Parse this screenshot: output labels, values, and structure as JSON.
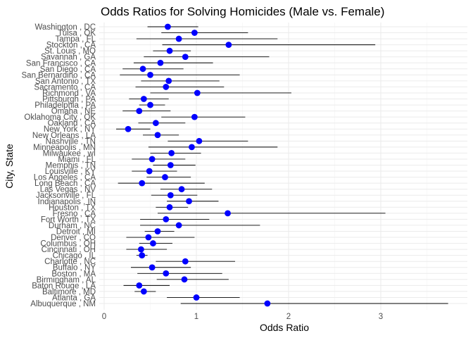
{
  "chart_data": {
    "type": "scatter",
    "title": "Odds Ratios for Solving Homicides (Male vs. Female)",
    "xlabel": "Odds Ratio",
    "ylabel": "City, State",
    "xlim": [
      0,
      3.85
    ],
    "xticks": [
      0,
      1,
      2,
      3
    ],
    "grid": true,
    "point_color": "#0000ff",
    "errorbar_color": "#000000",
    "categories": [
      "Washington , DC",
      "Tulsa , OK",
      "Tampa , FL",
      "Stockton , CA",
      "St. Louis , MO",
      "Savannah , GA",
      "San Francisco , CA",
      "San Diego , CA",
      "San Bernardino , CA",
      "San Antonio , TX",
      "Sacramento , CA",
      "Richmond , VA",
      "Pittsburgh , PA",
      "Philadelphia , PA",
      "Omaha , NE",
      "Oklahoma City , OK",
      "Oakland , CA",
      "New York , NY",
      "New Orleans , LA",
      "Nashville , TN",
      "Minneapolis , MN",
      "Milwaukee , wI",
      "Miami , FL",
      "Memphis , TN",
      "Louisville , KY",
      "Los Angeles , CA",
      "Long Beach , CA",
      "Las Vegas , NV",
      "Jacksonville , FL",
      "Indianapolis , IN",
      "Houston , TX",
      "Fresno , CA",
      "Fort Worth , TX",
      "Durham , NC",
      "Detroit , MI",
      "Denver , CO",
      "Columbus , OH",
      "Cincinnati , OH",
      "Chicago , IL",
      "Charlotte , NC",
      "Buffalo , NY",
      "Boston , MA",
      "Birmingham , AL",
      "Baton Rouge , LA",
      "Baltimore , MD",
      "Atlanta , GA",
      "Albuquerque , NM"
    ],
    "odds_ratio": [
      0.69,
      0.98,
      0.81,
      1.35,
      0.71,
      0.88,
      0.61,
      0.42,
      0.5,
      0.7,
      0.67,
      1.01,
      0.43,
      0.5,
      0.38,
      0.98,
      0.56,
      0.26,
      0.58,
      1.03,
      0.95,
      0.73,
      0.52,
      0.72,
      0.49,
      0.66,
      0.41,
      0.84,
      0.72,
      0.92,
      0.71,
      1.34,
      0.67,
      0.81,
      0.58,
      0.48,
      0.53,
      0.4,
      0.41,
      0.88,
      0.52,
      0.67,
      0.87,
      0.38,
      0.43,
      1.0,
      1.77
    ],
    "ci_low": [
      0.47,
      0.62,
      0.35,
      0.63,
      0.53,
      0.43,
      0.32,
      0.2,
      0.17,
      0.4,
      0.34,
      0.5,
      0.27,
      0.38,
      0.2,
      0.62,
      0.37,
      0.13,
      0.42,
      0.69,
      0.48,
      0.5,
      0.3,
      0.53,
      0.3,
      0.46,
      0.15,
      0.61,
      0.51,
      0.68,
      0.56,
      0.58,
      0.39,
      0.39,
      0.44,
      0.24,
      0.38,
      0.24,
      0.35,
      0.56,
      0.29,
      0.36,
      0.57,
      0.21,
      0.33,
      0.68,
      0.83
    ],
    "ci_high": [
      1.02,
      1.56,
      1.88,
      2.94,
      0.94,
      1.79,
      1.18,
      0.86,
      1.47,
      1.25,
      1.3,
      2.03,
      0.7,
      0.66,
      0.72,
      1.53,
      0.88,
      0.5,
      0.81,
      1.56,
      1.88,
      1.05,
      0.88,
      0.99,
      0.79,
      0.94,
      1.09,
      1.17,
      1.01,
      1.24,
      0.91,
      3.05,
      1.14,
      1.69,
      0.76,
      0.98,
      0.74,
      0.68,
      0.47,
      1.42,
      0.94,
      1.28,
      1.35,
      0.71,
      0.56,
      1.47,
      3.73
    ]
  }
}
